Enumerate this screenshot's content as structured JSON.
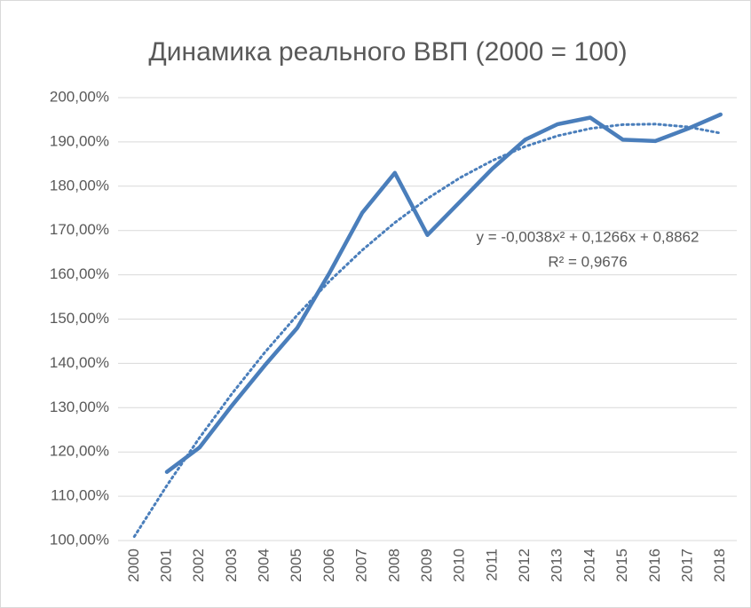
{
  "chart_data": {
    "type": "line",
    "title": "Динамика реального ВВП (2000 = 100)",
    "categories": [
      "2000",
      "2001",
      "2002",
      "2003",
      "2004",
      "2005",
      "2006",
      "2007",
      "2008",
      "2009",
      "2010",
      "2011",
      "2012",
      "2013",
      "2014",
      "2015",
      "2016",
      "2017",
      "2018"
    ],
    "series": [
      {
        "color": "#4a7ebb",
        "values": [
          null,
          115.5,
          121,
          130.5,
          139.5,
          148,
          160.5,
          174,
          183,
          169,
          176.5,
          184,
          190.5,
          194,
          195.5,
          190.5,
          190.2,
          193,
          196.2
        ]
      }
    ],
    "trendline": {
      "equation": "y = -0,0038x² + 0,1266x + 0,8862",
      "r2": "R² = 0,9676",
      "color": "#4a7ebb",
      "values": [
        100.9,
        112.42,
        123.18,
        133.18,
        142.42,
        150.9,
        158.62,
        165.58,
        171.78,
        177.22,
        181.9,
        185.82,
        188.98,
        191.38,
        193.02,
        193.9,
        194.02,
        193.38,
        191.98
      ]
    },
    "ylim": [
      100,
      200
    ],
    "yticks": [
      {
        "value": 100,
        "label": "100,00%"
      },
      {
        "value": 110,
        "label": "110,00%"
      },
      {
        "value": 120,
        "label": "120,00%"
      },
      {
        "value": 130,
        "label": "130,00%"
      },
      {
        "value": 140,
        "label": "140,00%"
      },
      {
        "value": 150,
        "label": "150,00%"
      },
      {
        "value": 160,
        "label": "160,00%"
      },
      {
        "value": 170,
        "label": "170,00%"
      },
      {
        "value": 180,
        "label": "180,00%"
      },
      {
        "value": 190,
        "label": "190,00%"
      },
      {
        "value": 200,
        "label": "200,00%"
      }
    ],
    "grid": true
  }
}
